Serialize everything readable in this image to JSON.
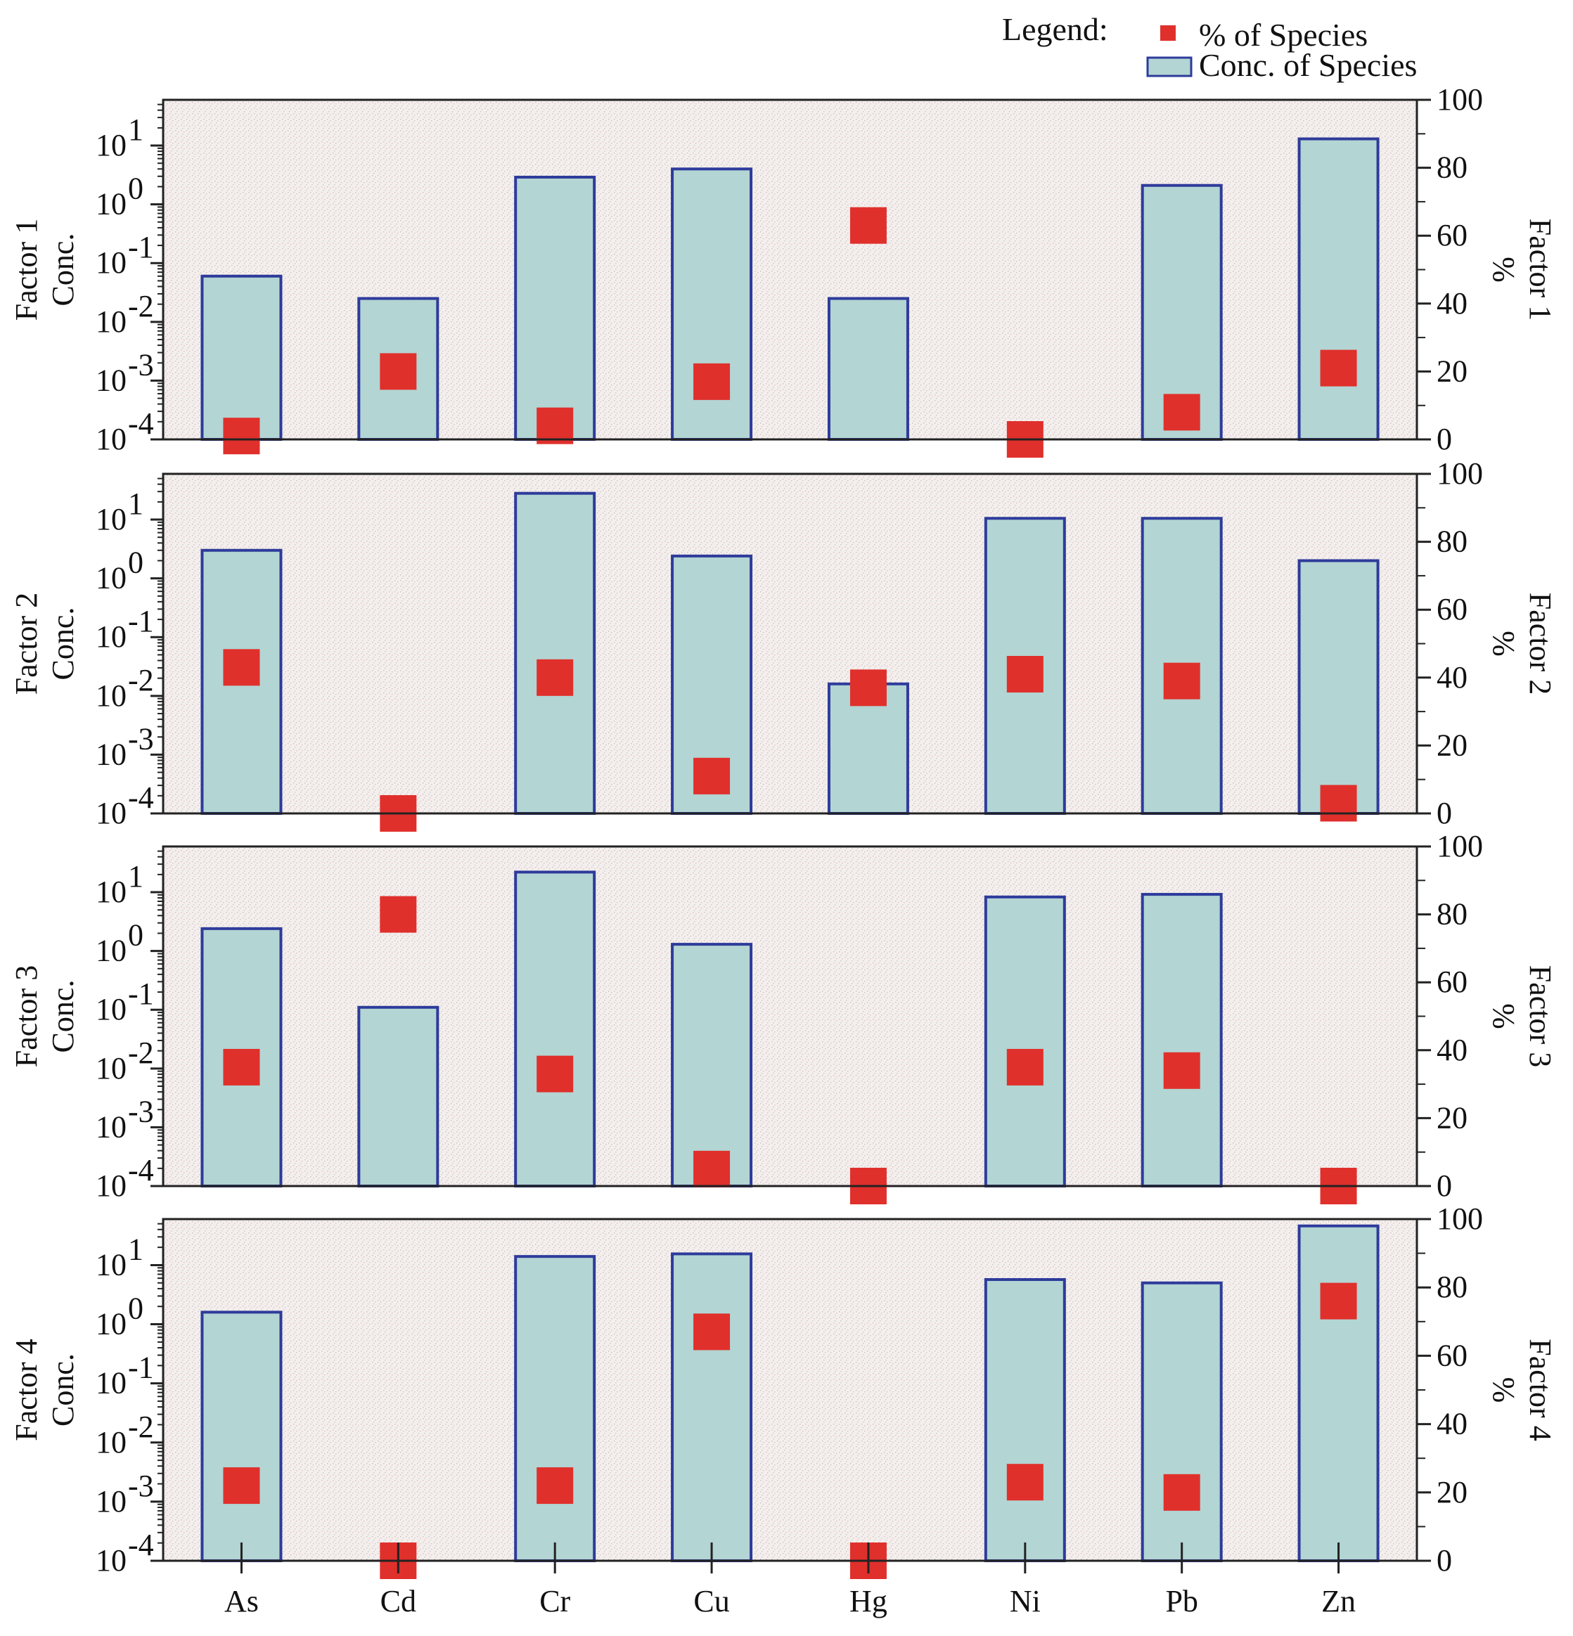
{
  "chart_data": {
    "type": "bar",
    "title": "",
    "categories": [
      "As",
      "Cd",
      "Cr",
      "Cu",
      "Hg",
      "Ni",
      "Pb",
      "Zn"
    ],
    "legend": {
      "label": "Legend:",
      "entries": [
        "% of Species",
        "Conc. of Species"
      ],
      "position": "top-right"
    },
    "y_left": {
      "scale": "log",
      "range": [
        0.0001,
        60
      ],
      "ticks": [
        {
          "base": "10",
          "exp": "-4"
        },
        {
          "base": "10",
          "exp": "-3"
        },
        {
          "base": "10",
          "exp": "-2"
        },
        {
          "base": "10",
          "exp": "-1"
        },
        {
          "base": "10",
          "exp": "0"
        },
        {
          "base": "10",
          "exp": "1"
        }
      ]
    },
    "y_right": {
      "scale": "linear",
      "range": [
        0,
        100
      ],
      "ticks": [
        "0",
        "20",
        "40",
        "60",
        "80",
        "100"
      ]
    },
    "panels": [
      {
        "left_label": "Factor 1",
        "left_sublabel": "Conc.",
        "right_label": "Factor 1",
        "right_sublabel": "%",
        "conc": [
          0.06,
          0.025,
          2.9,
          4.0,
          0.025,
          null,
          2.1,
          13
        ],
        "percent": [
          1,
          20,
          4,
          17,
          63,
          0,
          8,
          21
        ]
      },
      {
        "left_label": "Factor 2",
        "left_sublabel": "Conc.",
        "right_label": "Factor 2",
        "right_sublabel": "%",
        "conc": [
          3.0,
          null,
          28,
          2.4,
          0.016,
          10.5,
          10.5,
          2.0
        ],
        "percent": [
          43,
          0,
          40,
          11,
          37,
          41,
          39,
          3
        ]
      },
      {
        "left_label": "Factor 3",
        "left_sublabel": "Conc.",
        "right_label": "Factor 3",
        "right_sublabel": "%",
        "conc": [
          2.4,
          0.11,
          22,
          1.3,
          null,
          8.3,
          9.2,
          null
        ],
        "percent": [
          35,
          80,
          33,
          5,
          0,
          35,
          34,
          0
        ]
      },
      {
        "left_label": "Factor 4",
        "left_sublabel": "Conc.",
        "right_label": "Factor 4",
        "right_sublabel": "%",
        "conc": [
          1.6,
          null,
          14,
          15.5,
          null,
          5.7,
          5.0,
          46
        ],
        "percent": [
          22,
          0,
          22,
          67,
          0,
          23,
          20,
          76
        ]
      }
    ],
    "colors": {
      "bar_fill": "#b3d5d3",
      "bar_edge": "#2e3b9b",
      "marker": "#e0302c",
      "plot_bg": "#f2ecea"
    }
  }
}
